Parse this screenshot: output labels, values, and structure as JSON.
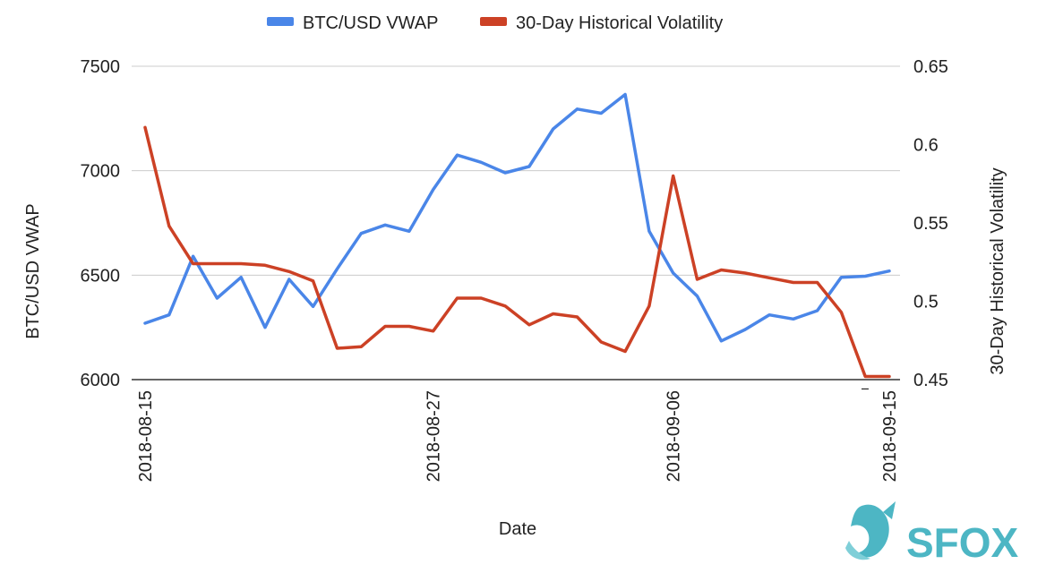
{
  "chart_data": {
    "type": "line",
    "xlabel": "Date",
    "ylabel_left": "BTC/USD VWAP",
    "ylabel_right": "30-Day Historical Volatility",
    "x_tick_labels": [
      "2018-08-15",
      "2018-08-27",
      "2018-09-06",
      "2018-09-15"
    ],
    "x": [
      "2018-08-15",
      "2018-08-16",
      "2018-08-17",
      "2018-08-18",
      "2018-08-19",
      "2018-08-20",
      "2018-08-21",
      "2018-08-22",
      "2018-08-23",
      "2018-08-24",
      "2018-08-25",
      "2018-08-26",
      "2018-08-27",
      "2018-08-28",
      "2018-08-29",
      "2018-08-30",
      "2018-08-31",
      "2018-09-01",
      "2018-09-02",
      "2018-09-03",
      "2018-09-04",
      "2018-09-05",
      "2018-09-06",
      "2018-09-07",
      "2018-09-08",
      "2018-09-09",
      "2018-09-10",
      "2018-09-11",
      "2018-09-12",
      "2018-09-13",
      "2018-09-14",
      "2018-09-15"
    ],
    "left_axis": {
      "ylim": [
        6000,
        7500
      ],
      "ticks": [
        "6000",
        "6500",
        "7000",
        "7500"
      ]
    },
    "right_axis": {
      "ylim": [
        0.45,
        0.65
      ],
      "ticks": [
        "0.45",
        "0.5",
        "0.55",
        "0.6",
        "0.65"
      ]
    },
    "series": [
      {
        "name": "BTC/USD VWAP",
        "axis": "left",
        "color": "#4a86e8",
        "values": [
          6270,
          6310,
          6590,
          6390,
          6490,
          6250,
          6480,
          6350,
          6530,
          6700,
          6740,
          6710,
          6910,
          7075,
          7040,
          6990,
          7020,
          7200,
          7295,
          7275,
          7365,
          6710,
          6510,
          6400,
          6185,
          6240,
          6310,
          6290,
          6330,
          6490,
          6495,
          6520
        ]
      },
      {
        "name": "30-Day Historical Volatility",
        "axis": "right",
        "color": "#cc4125",
        "values": [
          0.611,
          0.548,
          0.524,
          0.524,
          0.524,
          0.523,
          0.519,
          0.513,
          0.47,
          0.471,
          0.484,
          0.484,
          0.481,
          0.502,
          0.502,
          0.497,
          0.485,
          0.492,
          0.49,
          0.474,
          0.468,
          0.497,
          0.58,
          0.514,
          0.52,
          0.518,
          0.515,
          0.512,
          0.512,
          0.493,
          0.452,
          0.452
        ]
      }
    ],
    "legend": {
      "placement": "top",
      "entries": [
        "BTC/USD VWAP",
        "30-Day Historical Volatility"
      ]
    },
    "grid": true,
    "stray_tick_mark": "‾"
  },
  "logo": {
    "text": "SFOX",
    "color": "#4db6c4"
  }
}
